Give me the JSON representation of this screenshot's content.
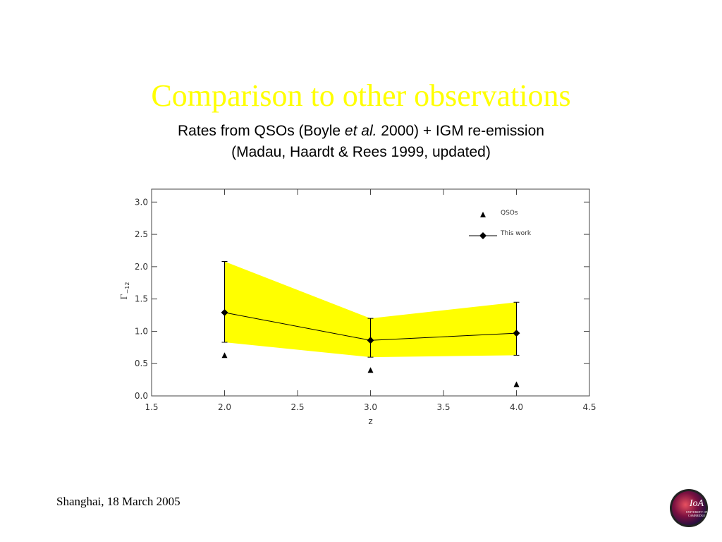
{
  "slide": {
    "title": "Comparison to other observations",
    "subtitle": {
      "part1": "Rates from QSOs (Boyle ",
      "italic": "et al.",
      "part2": " 2000) + IGM re-emission",
      "line2": "(Madau, Haardt & Rees 1999, updated)"
    },
    "footer": "Shanghai, 18 March  2005",
    "logo": {
      "text": "IoA",
      "sub1": "UNIVERSITY OF",
      "sub2": "CAMBRIDGE"
    }
  },
  "chart_data": {
    "type": "line",
    "x_label": "z",
    "y_label": "Γ",
    "y_label_sub": "−12",
    "xlim": [
      1.5,
      4.5
    ],
    "ylim": [
      0,
      3.2
    ],
    "xticks": [
      {
        "value": 1.5,
        "label": "1.5"
      },
      {
        "value": 2,
        "label": "2.0"
      },
      {
        "value": 2.5,
        "label": "2.5"
      },
      {
        "value": 3,
        "label": "3.0"
      },
      {
        "value": 3.5,
        "label": "3.5"
      },
      {
        "value": 4,
        "label": "4.0"
      },
      {
        "value": 4.5,
        "label": "4.5"
      }
    ],
    "yticks": [
      {
        "value": 0,
        "label": "0.0"
      },
      {
        "value": 0.5,
        "label": "0.5"
      },
      {
        "value": 1,
        "label": "1.0"
      },
      {
        "value": 1.5,
        "label": "1.5"
      },
      {
        "value": 2,
        "label": "2.0"
      },
      {
        "value": 2.5,
        "label": "2.5"
      },
      {
        "value": 3,
        "label": "3.0"
      }
    ],
    "legend": "upper right",
    "series": [
      {
        "name": "QSOs",
        "color": "#000000",
        "marker": "triangle",
        "x": [
          2,
          3,
          4
        ],
        "values": [
          0.62,
          0.39,
          0.17
        ]
      },
      {
        "name": "This work",
        "color": "#000000",
        "marker": "diamond",
        "band_color": "#ffff00",
        "x": [
          2,
          3,
          4
        ],
        "values": [
          1.29,
          0.86,
          0.97
        ],
        "upper": [
          2.08,
          1.2,
          1.45
        ],
        "lower": [
          0.83,
          0.6,
          0.63
        ]
      }
    ]
  }
}
